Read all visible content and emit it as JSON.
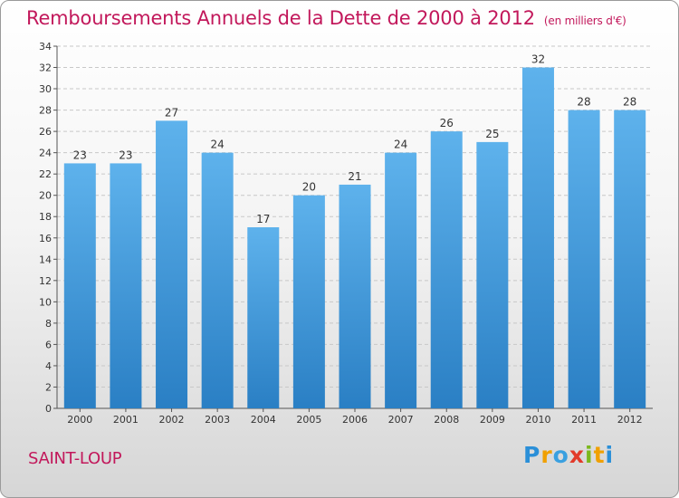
{
  "chart_data": {
    "type": "bar",
    "title": "Remboursements Annuels de la Dette de 2000 à 2012",
    "subtitle": "(en milliers d'€)",
    "categories": [
      "2000",
      "2001",
      "2002",
      "2003",
      "2004",
      "2005",
      "2006",
      "2007",
      "2008",
      "2009",
      "2010",
      "2011",
      "2012"
    ],
    "values": [
      23,
      23,
      27,
      24,
      17,
      20,
      21,
      24,
      26,
      25,
      32,
      28,
      28
    ],
    "ylim": [
      0,
      34
    ],
    "yticks": [
      0,
      2,
      4,
      6,
      8,
      10,
      12,
      14,
      16,
      18,
      20,
      22,
      24,
      26,
      28,
      30,
      32,
      34
    ],
    "grid": true,
    "xlabel": "",
    "ylabel": "",
    "bar_color": "#3d97dc"
  },
  "footer": {
    "city": "SAINT-LOUP",
    "brand_letters": [
      "P",
      "r",
      "o",
      "x",
      "i",
      "t",
      "i"
    ]
  },
  "colors": {
    "title": "#c2185b",
    "grid": "#c8c8c8"
  }
}
